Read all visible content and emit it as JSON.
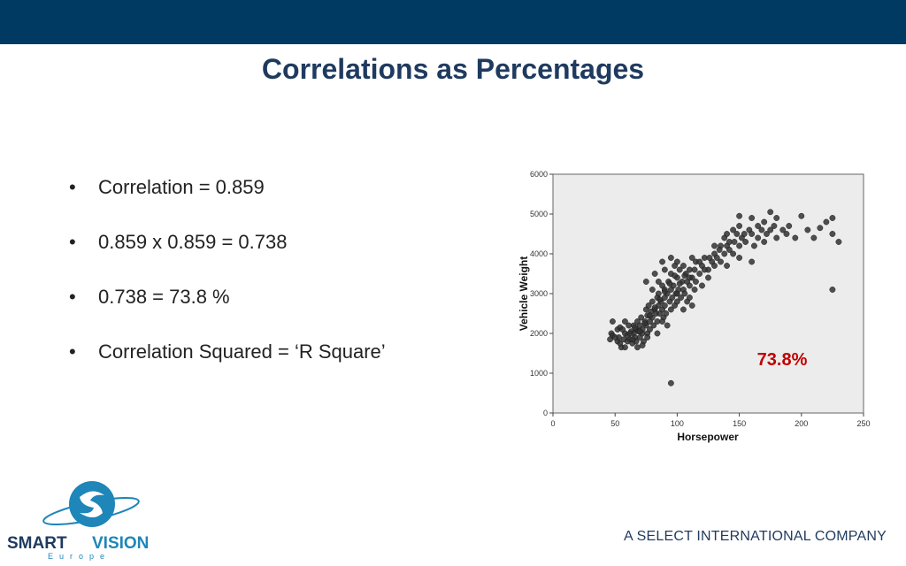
{
  "slide": {
    "title": "Correlations as Percentages",
    "bullets": [
      "Correlation  =  0.859",
      "0.859 x 0.859 = 0.738",
      "0.738 = 73.8 %",
      "Correlation Squared  = ‘R Square’"
    ],
    "footer": "A SELECT INTERNATIONAL COMPANY",
    "logo": {
      "brand_smart": "SMART",
      "brand_vision": "VISION",
      "tagline": "Europe"
    }
  },
  "colors": {
    "header_bar": "#003a63",
    "title": "#1f3a5f",
    "annotation": "#c00000",
    "plot_bg": "#ececec",
    "points": "#333333"
  },
  "chart_data": {
    "type": "scatter",
    "title": "",
    "xlabel": "Horsepower",
    "ylabel": "Vehicle Weight",
    "xlim": [
      0,
      250
    ],
    "ylim": [
      0,
      6000
    ],
    "xticks": [
      "0",
      "50",
      "100",
      "150",
      "200",
      "250"
    ],
    "yticks": [
      "0",
      "1000",
      "2000",
      "3000",
      "4000",
      "5000",
      "6000"
    ],
    "grid": false,
    "annotation": "73.8%",
    "points": [
      [
        46,
        1850
      ],
      [
        47,
        2000
      ],
      [
        48,
        1950
      ],
      [
        48,
        2300
      ],
      [
        52,
        2100
      ],
      [
        52,
        1800
      ],
      [
        53,
        1900
      ],
      [
        54,
        2150
      ],
      [
        55,
        1650
      ],
      [
        57,
        1850
      ],
      [
        58,
        2000
      ],
      [
        58,
        2300
      ],
      [
        60,
        1800
      ],
      [
        60,
        1950
      ],
      [
        61,
        2200
      ],
      [
        62,
        1850
      ],
      [
        63,
        2050
      ],
      [
        64,
        1750
      ],
      [
        65,
        2000
      ],
      [
        65,
        2200
      ],
      [
        66,
        1900
      ],
      [
        67,
        2100
      ],
      [
        67,
        1800
      ],
      [
        68,
        1650
      ],
      [
        68,
        2300
      ],
      [
        69,
        2050
      ],
      [
        70,
        2200
      ],
      [
        70,
        1900
      ],
      [
        71,
        2400
      ],
      [
        72,
        2100
      ],
      [
        72,
        2000
      ],
      [
        73,
        1800
      ],
      [
        74,
        2300
      ],
      [
        75,
        2200
      ],
      [
        75,
        2600
      ],
      [
        75,
        3300
      ],
      [
        76,
        2000
      ],
      [
        76,
        2450
      ],
      [
        77,
        2700
      ],
      [
        78,
        2100
      ],
      [
        78,
        2300
      ],
      [
        79,
        2550
      ],
      [
        80,
        2400
      ],
      [
        80,
        2800
      ],
      [
        80,
        3100
      ],
      [
        81,
        2200
      ],
      [
        82,
        2600
      ],
      [
        82,
        3500
      ],
      [
        83,
        2500
      ],
      [
        84,
        2900
      ],
      [
        84,
        2300
      ],
      [
        85,
        2700
      ],
      [
        85,
        3000
      ],
      [
        85,
        3300
      ],
      [
        86,
        2500
      ],
      [
        87,
        2800
      ],
      [
        88,
        2600
      ],
      [
        88,
        3200
      ],
      [
        88,
        3800
      ],
      [
        89,
        2400
      ],
      [
        90,
        2900
      ],
      [
        90,
        3100
      ],
      [
        90,
        2700
      ],
      [
        90,
        3600
      ],
      [
        91,
        2500
      ],
      [
        92,
        3000
      ],
      [
        92,
        2200
      ],
      [
        93,
        3300
      ],
      [
        94,
        2800
      ],
      [
        95,
        2600
      ],
      [
        95,
        3100
      ],
      [
        95,
        3500
      ],
      [
        95,
        3900
      ],
      [
        96,
        2900
      ],
      [
        97,
        3200
      ],
      [
        98,
        2700
      ],
      [
        98,
        3700
      ],
      [
        99,
        3000
      ],
      [
        100,
        3400
      ],
      [
        100,
        2800
      ],
      [
        100,
        3800
      ],
      [
        101,
        3100
      ],
      [
        102,
        3600
      ],
      [
        103,
        2900
      ],
      [
        104,
        3300
      ],
      [
        105,
        3100
      ],
      [
        105,
        3700
      ],
      [
        106,
        3000
      ],
      [
        107,
        3500
      ],
      [
        108,
        2800
      ],
      [
        108,
        3300
      ],
      [
        110,
        3200
      ],
      [
        110,
        3600
      ],
      [
        110,
        2900
      ],
      [
        112,
        3400
      ],
      [
        112,
        3900
      ],
      [
        114,
        3100
      ],
      [
        115,
        3300
      ],
      [
        115,
        3800
      ],
      [
        118,
        3500
      ],
      [
        120,
        3700
      ],
      [
        120,
        3200
      ],
      [
        122,
        3900
      ],
      [
        125,
        3400
      ],
      [
        125,
        3600
      ],
      [
        128,
        3800
      ],
      [
        130,
        3700
      ],
      [
        130,
        4000
      ],
      [
        132,
        3900
      ],
      [
        135,
        3800
      ],
      [
        135,
        4200
      ],
      [
        138,
        4000
      ],
      [
        140,
        4200
      ],
      [
        140,
        4500
      ],
      [
        142,
        4300
      ],
      [
        145,
        4600
      ],
      [
        145,
        4000
      ],
      [
        148,
        4500
      ],
      [
        150,
        4700
      ],
      [
        150,
        4200
      ],
      [
        150,
        4950
      ],
      [
        152,
        4400
      ],
      [
        155,
        4300
      ],
      [
        158,
        4600
      ],
      [
        160,
        4900
      ],
      [
        160,
        4500
      ],
      [
        165,
        4400
      ],
      [
        165,
        4700
      ],
      [
        170,
        4300
      ],
      [
        170,
        4800
      ],
      [
        175,
        5050
      ],
      [
        175,
        4600
      ],
      [
        180,
        4400
      ],
      [
        180,
        4900
      ],
      [
        185,
        4600
      ],
      [
        190,
        4700
      ],
      [
        195,
        4400
      ],
      [
        200,
        4950
      ],
      [
        205,
        4600
      ],
      [
        210,
        4400
      ],
      [
        215,
        4650
      ],
      [
        220,
        4800
      ],
      [
        225,
        4900
      ],
      [
        225,
        4500
      ],
      [
        230,
        4300
      ],
      [
        225,
        3100
      ],
      [
        95,
        750
      ],
      [
        50,
        1900
      ],
      [
        56,
        2100
      ],
      [
        62,
        2000
      ],
      [
        66,
        2150
      ],
      [
        70,
        2050
      ],
      [
        74,
        2250
      ],
      [
        78,
        2450
      ],
      [
        82,
        2650
      ],
      [
        86,
        2850
      ],
      [
        90,
        3050
      ],
      [
        94,
        3250
      ],
      [
        98,
        3450
      ],
      [
        102,
        3250
      ],
      [
        106,
        3450
      ],
      [
        110,
        3400
      ],
      [
        114,
        3600
      ],
      [
        118,
        3800
      ],
      [
        122,
        3600
      ],
      [
        126,
        3900
      ],
      [
        130,
        4200
      ],
      [
        134,
        4100
      ],
      [
        138,
        4400
      ],
      [
        142,
        4100
      ],
      [
        146,
        4300
      ],
      [
        154,
        4500
      ],
      [
        162,
        4200
      ],
      [
        168,
        4600
      ],
      [
        172,
        4500
      ],
      [
        178,
        4700
      ],
      [
        188,
        4500
      ],
      [
        150,
        3900
      ],
      [
        160,
        3800
      ],
      [
        140,
        3700
      ],
      [
        105,
        2600
      ],
      [
        112,
        2700
      ],
      [
        100,
        3000
      ],
      [
        88,
        2300
      ],
      [
        84,
        2000
      ],
      [
        76,
        1900
      ],
      [
        72,
        1700
      ],
      [
        64,
        1850
      ],
      [
        58,
        1650
      ],
      [
        54,
        1750
      ]
    ]
  }
}
